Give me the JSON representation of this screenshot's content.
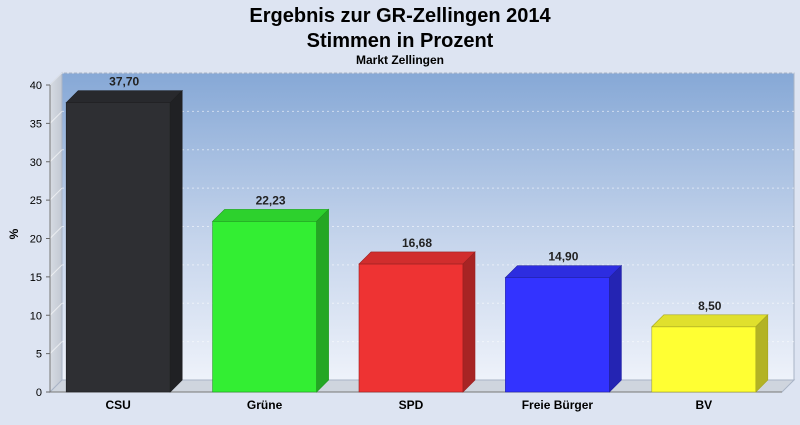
{
  "chart_data": {
    "type": "bar",
    "title": "Ergebnis zur GR-Zellingen 2014",
    "subtitle": "Stimmen in Prozent",
    "caption": "Markt Zellingen",
    "xlabel": "",
    "ylabel": "%",
    "ylim": [
      0,
      40
    ],
    "yticks": [
      0,
      5,
      10,
      15,
      20,
      25,
      30,
      35,
      40
    ],
    "grid": true,
    "legend": "none",
    "categories": [
      "CSU",
      "Grüne",
      "SPD",
      "Freie Bürger",
      "BV"
    ],
    "values": [
      37.7,
      22.23,
      16.68,
      14.9,
      8.5
    ],
    "value_labels": [
      "37,70",
      "22,23",
      "16,68",
      "14,90",
      "8,50"
    ],
    "colors": [
      "#2e2f33",
      "#33ee33",
      "#ee3333",
      "#3333ff",
      "#ffff33"
    ]
  }
}
